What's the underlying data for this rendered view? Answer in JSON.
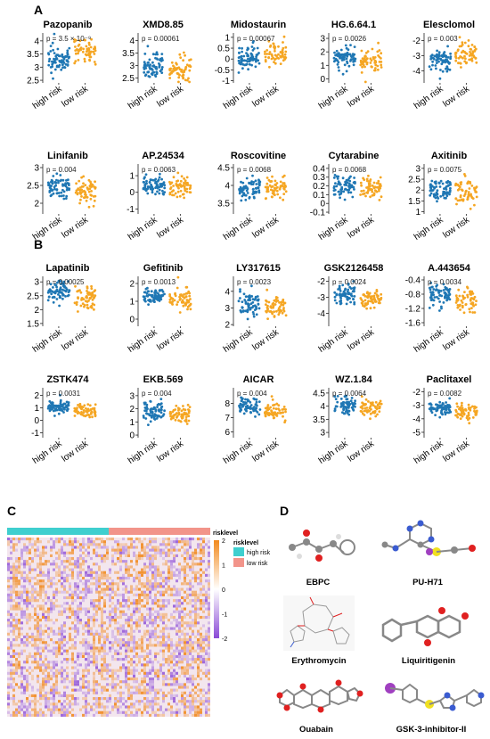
{
  "panels": {
    "A": "A",
    "B": "B",
    "C": "C",
    "D": "D"
  },
  "colors": {
    "high": "#1f77b4",
    "low": "#f5a623",
    "hm_high": "#3fcfcf",
    "hm_low": "#f2948a",
    "hm_pos": "#f28a1e",
    "hm_mid": "#ffffff",
    "hm_neg": "#8a4ad6"
  },
  "chart_data": [
    {
      "type": "scatter",
      "panel": "A",
      "title": "Pazopanib",
      "p_label": "p = 3.5 × 10⁻⁹",
      "categories": [
        "high risk",
        "low risk"
      ],
      "yticks": [
        2.5,
        3.0,
        3.5,
        4.0
      ],
      "ylim": [
        2.4,
        4.3
      ],
      "high": {
        "center": 3.3,
        "spread": 0.55
      },
      "low": {
        "center": 3.55,
        "spread": 0.55
      }
    },
    {
      "type": "scatter",
      "panel": "A",
      "title": "XMD8.85",
      "p_label": "p = 0.00061",
      "categories": [
        "high risk",
        "low risk"
      ],
      "yticks": [
        2.5,
        3.0,
        3.5,
        4.0
      ],
      "ylim": [
        2.3,
        4.3
      ],
      "high": {
        "center": 2.95,
        "spread": 0.55
      },
      "low": {
        "center": 2.8,
        "spread": 0.5
      }
    },
    {
      "type": "scatter",
      "panel": "A",
      "title": "Midostaurin",
      "p_label": "p = 0.00067",
      "categories": [
        "high risk",
        "low risk"
      ],
      "yticks": [
        -1.0,
        -0.5,
        0.0,
        0.5,
        1.0
      ],
      "ylim": [
        -1.1,
        1.2
      ],
      "high": {
        "center": 0.05,
        "spread": 0.5
      },
      "low": {
        "center": 0.25,
        "spread": 0.55
      }
    },
    {
      "type": "scatter",
      "panel": "A",
      "title": "HG.6.64.1",
      "p_label": "p = 0.0026",
      "categories": [
        "high risk",
        "low risk"
      ],
      "yticks": [
        0,
        1,
        2,
        3
      ],
      "ylim": [
        -0.3,
        3.4
      ],
      "high": {
        "center": 1.6,
        "spread": 0.9
      },
      "low": {
        "center": 1.3,
        "spread": 0.9
      }
    },
    {
      "type": "scatter",
      "panel": "A",
      "title": "Elesclomol",
      "p_label": "p = 0.003",
      "categories": [
        "high risk",
        "low risk"
      ],
      "yticks": [
        -4,
        -3,
        -2
      ],
      "ylim": [
        -4.8,
        -1.5
      ],
      "high": {
        "center": -3.2,
        "spread": 0.8
      },
      "low": {
        "center": -2.9,
        "spread": 0.9
      }
    },
    {
      "type": "scatter",
      "panel": "A",
      "title": "Linifanib",
      "p_label": "p = 0.004",
      "categories": [
        "high risk",
        "low risk"
      ],
      "yticks": [
        2.0,
        2.5,
        3.0
      ],
      "ylim": [
        1.7,
        3.1
      ],
      "high": {
        "center": 2.45,
        "spread": 0.35
      },
      "low": {
        "center": 2.35,
        "spread": 0.35
      }
    },
    {
      "type": "scatter",
      "panel": "A",
      "title": "AP.24534",
      "p_label": "p = 0.0063",
      "categories": [
        "high risk",
        "low risk"
      ],
      "yticks": [
        -1,
        0,
        1
      ],
      "ylim": [
        -1.3,
        1.7
      ],
      "high": {
        "center": 0.5,
        "spread": 0.55
      },
      "low": {
        "center": 0.3,
        "spread": 0.6
      }
    },
    {
      "type": "scatter",
      "panel": "A",
      "title": "Roscovitine",
      "p_label": "p = 0.0068",
      "categories": [
        "high risk",
        "low risk"
      ],
      "yticks": [
        3.5,
        4.0,
        4.5
      ],
      "ylim": [
        3.2,
        4.6
      ],
      "high": {
        "center": 3.9,
        "spread": 0.3
      },
      "low": {
        "center": 3.95,
        "spread": 0.3
      }
    },
    {
      "type": "scatter",
      "panel": "A",
      "title": "Cytarabine",
      "p_label": "p = 0.0068",
      "categories": [
        "high risk",
        "low risk"
      ],
      "yticks": [
        -0.1,
        0.0,
        0.1,
        0.2,
        0.3,
        0.4
      ],
      "ylim": [
        -0.12,
        0.45
      ],
      "high": {
        "center": 0.2,
        "spread": 0.12
      },
      "low": {
        "center": 0.17,
        "spread": 0.13
      }
    },
    {
      "type": "scatter",
      "panel": "A",
      "title": "Axitinib",
      "p_label": "p = 0.0075",
      "categories": [
        "high risk",
        "low risk"
      ],
      "yticks": [
        1.0,
        1.5,
        2.0,
        2.5,
        3.0
      ],
      "ylim": [
        0.9,
        3.2
      ],
      "high": {
        "center": 2.0,
        "spread": 0.5
      },
      "low": {
        "center": 1.9,
        "spread": 0.55
      }
    },
    {
      "type": "scatter",
      "panel": "B",
      "title": "Lapatinib",
      "p_label": "p = 0.00025",
      "categories": [
        "high risk",
        "low risk"
      ],
      "yticks": [
        1.5,
        2.0,
        2.5,
        3.0
      ],
      "ylim": [
        1.4,
        3.2
      ],
      "high": {
        "center": 2.65,
        "spread": 0.35
      },
      "low": {
        "center": 2.4,
        "spread": 0.4
      }
    },
    {
      "type": "scatter",
      "panel": "B",
      "title": "Gefitinib",
      "p_label": "p = 0.0013",
      "categories": [
        "high risk",
        "low risk"
      ],
      "yticks": [
        0,
        1,
        2
      ],
      "ylim": [
        -0.4,
        2.4
      ],
      "high": {
        "center": 1.3,
        "spread": 0.45
      },
      "low": {
        "center": 1.05,
        "spread": 0.55
      }
    },
    {
      "type": "scatter",
      "panel": "B",
      "title": "LY317615",
      "p_label": "p = 0.0023",
      "categories": [
        "high risk",
        "low risk"
      ],
      "yticks": [
        2,
        3,
        4
      ],
      "ylim": [
        1.9,
        4.9
      ],
      "high": {
        "center": 3.3,
        "spread": 0.7
      },
      "low": {
        "center": 3.0,
        "spread": 0.6
      }
    },
    {
      "type": "scatter",
      "panel": "B",
      "title": "GSK2126458",
      "p_label": "p = 0.0024",
      "categories": [
        "high risk",
        "low risk"
      ],
      "yticks": [
        -4,
        -3,
        -2
      ],
      "ylim": [
        -4.8,
        -1.7
      ],
      "high": {
        "center": -2.8,
        "spread": 0.6
      },
      "low": {
        "center": -3.1,
        "spread": 0.6
      }
    },
    {
      "type": "scatter",
      "panel": "B",
      "title": "A.443654",
      "p_label": "p = 0.0034",
      "categories": [
        "high risk",
        "low risk"
      ],
      "yticks": [
        -1.6,
        -1.2,
        -0.8,
        -0.4
      ],
      "ylim": [
        -1.7,
        -0.3
      ],
      "high": {
        "center": -0.8,
        "spread": 0.3
      },
      "low": {
        "center": -0.95,
        "spread": 0.35
      }
    },
    {
      "type": "scatter",
      "panel": "B",
      "title": "ZSTK474",
      "p_label": "p = 0.0031",
      "categories": [
        "high risk",
        "low risk"
      ],
      "yticks": [
        -1,
        0,
        1,
        2
      ],
      "ylim": [
        -1.4,
        2.6
      ],
      "high": {
        "center": 1.1,
        "spread": 0.5
      },
      "low": {
        "center": 0.75,
        "spread": 0.6
      }
    },
    {
      "type": "scatter",
      "panel": "B",
      "title": "EKB.569",
      "p_label": "p = 0.004",
      "categories": [
        "high risk",
        "low risk"
      ],
      "yticks": [
        0,
        1,
        2,
        3
      ],
      "ylim": [
        -0.2,
        3.6
      ],
      "high": {
        "center": 1.8,
        "spread": 0.7
      },
      "low": {
        "center": 1.55,
        "spread": 0.7
      }
    },
    {
      "type": "scatter",
      "panel": "B",
      "title": "AICAR",
      "p_label": "p = 0.004",
      "categories": [
        "high risk",
        "low risk"
      ],
      "yticks": [
        6,
        7,
        8
      ],
      "ylim": [
        5.6,
        9.1
      ],
      "high": {
        "center": 7.8,
        "spread": 0.55
      },
      "low": {
        "center": 7.5,
        "spread": 0.6
      }
    },
    {
      "type": "scatter",
      "panel": "B",
      "title": "WZ.1.84",
      "p_label": "p = 0.0064",
      "categories": [
        "high risk",
        "low risk"
      ],
      "yticks": [
        3.0,
        3.5,
        4.0,
        4.5
      ],
      "ylim": [
        2.8,
        4.7
      ],
      "high": {
        "center": 4.05,
        "spread": 0.3
      },
      "low": {
        "center": 3.9,
        "spread": 0.35
      }
    },
    {
      "type": "scatter",
      "panel": "B",
      "title": "Paclitaxel",
      "p_label": "p = 0.0082",
      "categories": [
        "high risk",
        "low risk"
      ],
      "yticks": [
        -5,
        -4,
        -3,
        -2
      ],
      "ylim": [
        -5.4,
        -1.7
      ],
      "high": {
        "center": -3.2,
        "spread": 0.5
      },
      "low": {
        "center": -3.5,
        "spread": 0.6
      }
    },
    {
      "type": "heatmap",
      "panel": "C",
      "annotation_title": "risklevel",
      "legend_title": "risklevel",
      "legend": [
        "high risk",
        "low risk"
      ],
      "colorbar_ticks": [
        2,
        1,
        0,
        -1,
        -2
      ],
      "groups": [
        {
          "name": "high risk",
          "fraction": 0.5
        },
        {
          "name": "low risk",
          "fraction": 0.5
        }
      ]
    }
  ],
  "molecules": [
    "EBPC",
    "PU-H71",
    "Erythromycin",
    "Liquiritigenin",
    "Ouabain",
    "GSK-3-inhibitor-II"
  ]
}
